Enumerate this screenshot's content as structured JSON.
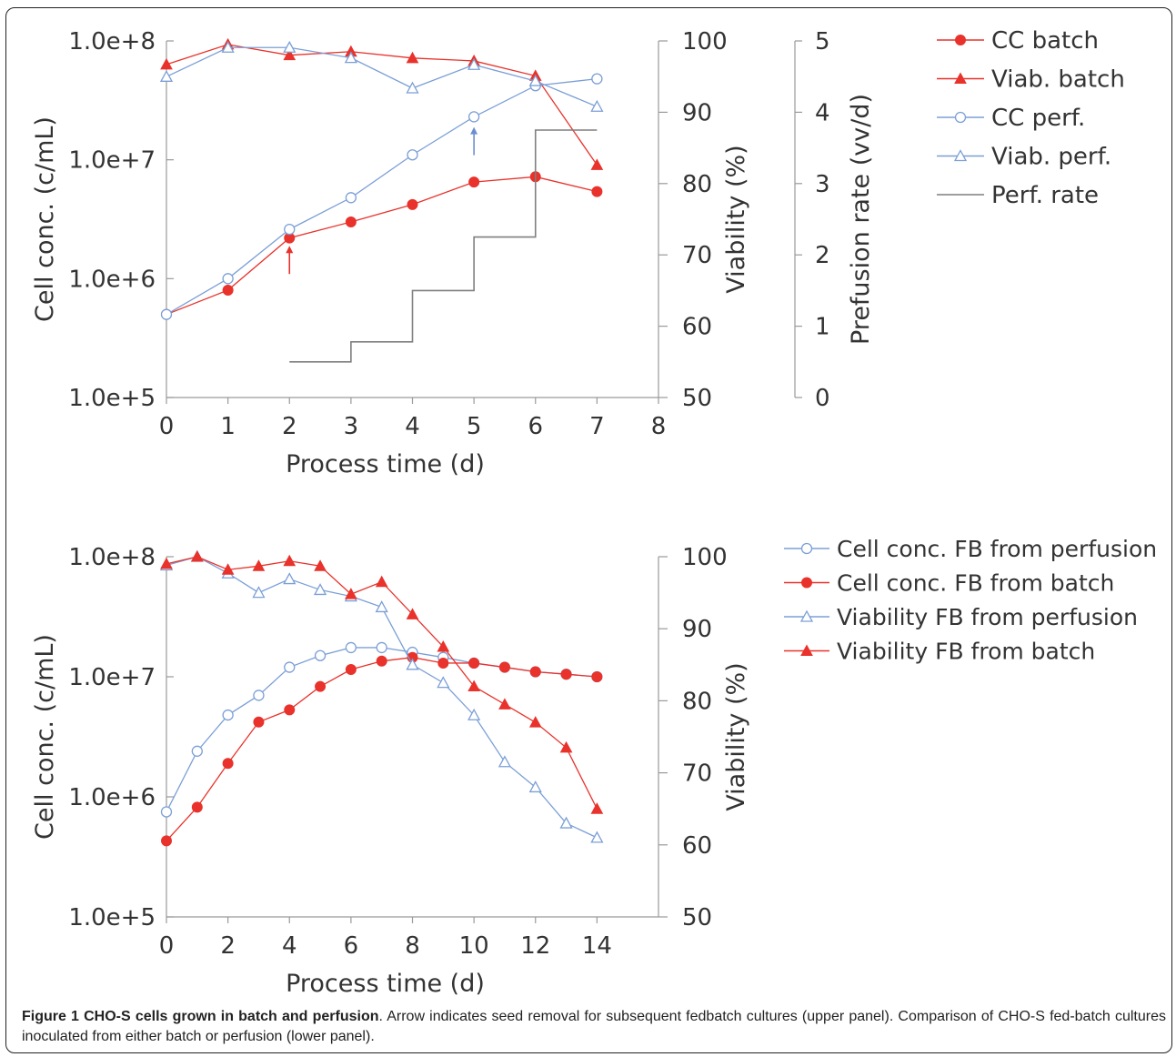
{
  "chart_data": [
    {
      "type": "line",
      "panel": "upper",
      "xlabel": "Process time (d)",
      "ylabel_left": "Cell conc. (c/mL)",
      "ylabel_right1": "Viability (%)",
      "ylabel_right2": "Prefusion rate (vv/d)",
      "x_ticks": [
        "0",
        "1",
        "2",
        "3",
        "4",
        "5",
        "6",
        "7",
        "8"
      ],
      "y_left_ticks": [
        "1.0e+5",
        "1.0e+6",
        "1.0e+7",
        "1.0e+8"
      ],
      "y_right1_ticks": [
        "50",
        "60",
        "70",
        "80",
        "90",
        "100"
      ],
      "y_right2_ticks": [
        "0",
        "1",
        "2",
        "3",
        "4",
        "5"
      ],
      "xlim": [
        0,
        8
      ],
      "ylim_left": [
        100000,
        100000000
      ],
      "y_left_scale": "log",
      "ylim_right1": [
        50,
        100
      ],
      "ylim_right2": [
        0,
        5
      ],
      "legend_position": "right",
      "series": [
        {
          "name": "CC batch",
          "axis": "left",
          "marker": "filled-circle",
          "color": "#e8322b",
          "x": [
            0,
            1,
            2,
            3,
            4,
            5,
            6,
            7
          ],
          "y": [
            500000,
            800000,
            2200000,
            3000000,
            4200000,
            6500000,
            7200000,
            5400000
          ]
        },
        {
          "name": "Viab. batch",
          "axis": "right1",
          "marker": "filled-triangle",
          "color": "#e8322b",
          "x": [
            0,
            1,
            2,
            3,
            4,
            5,
            6,
            7
          ],
          "y": [
            96.7,
            99.5,
            98.0,
            98.5,
            97.6,
            97.2,
            95.1,
            82.6
          ]
        },
        {
          "name": "CC perf.",
          "axis": "left",
          "marker": "open-circle",
          "color": "#7b9fd6",
          "x": [
            0,
            1,
            2,
            3,
            4,
            5,
            6,
            7
          ],
          "y": [
            500000,
            1000000,
            2600000,
            4800000,
            11000000,
            23000000,
            42000000,
            48000000
          ]
        },
        {
          "name": "Viab. perf.",
          "axis": "left",
          "marker": "open-triangle",
          "color": "#7b9fd6",
          "x": [
            0,
            1,
            2,
            3,
            4,
            5,
            6,
            7
          ],
          "y": [
            50000000,
            88000000,
            88000000,
            72000000,
            40000000,
            63000000,
            46000000,
            28000000
          ]
        },
        {
          "name": "Perf. rate",
          "axis": "right2",
          "marker": "none",
          "color": "#7f7f7f",
          "step": true,
          "x": [
            2,
            3,
            3,
            4,
            4,
            5,
            5,
            6,
            6,
            7
          ],
          "y": [
            0.5,
            0.5,
            0.78,
            0.78,
            1.5,
            1.5,
            2.25,
            2.25,
            3.75,
            3.75
          ]
        }
      ],
      "annotations": [
        {
          "type": "arrow",
          "color": "#e8322b",
          "x": 2,
          "y": 1400000
        },
        {
          "type": "arrow",
          "color": "#6b8fd0",
          "x": 5,
          "y": 14000000
        }
      ]
    },
    {
      "type": "line",
      "panel": "lower",
      "xlabel": "Process time (d)",
      "ylabel_left": "Cell conc. (c/mL)",
      "ylabel_right1": "Viability (%)",
      "x_ticks": [
        "0",
        "2",
        "4",
        "6",
        "8",
        "10",
        "12",
        "14"
      ],
      "y_left_ticks": [
        "1.0e+5",
        "1.0e+6",
        "1.0e+7",
        "1.0e+8"
      ],
      "y_right1_ticks": [
        "50",
        "60",
        "70",
        "80",
        "90",
        "100"
      ],
      "xlim": [
        0,
        16
      ],
      "ylim_left": [
        100000,
        100000000
      ],
      "y_left_scale": "log",
      "ylim_right1": [
        50,
        100
      ],
      "legend_position": "right",
      "series": [
        {
          "name": "Cell conc. FB from perfusion",
          "axis": "left",
          "marker": "open-circle",
          "color": "#7b9fd6",
          "x": [
            0,
            1,
            2,
            3,
            4,
            5,
            6,
            7,
            8,
            9,
            10,
            11,
            12,
            13,
            14
          ],
          "y": [
            750000,
            2400000,
            4800000,
            7000000,
            12000000,
            15000000,
            17500000,
            17500000,
            16000000,
            14500000,
            13000000,
            12000000,
            11000000,
            10500000,
            10000000
          ]
        },
        {
          "name": "Cell conc. FB from batch",
          "axis": "left",
          "marker": "filled-circle",
          "color": "#e8322b",
          "x": [
            0,
            1,
            2,
            3,
            4,
            5,
            6,
            7,
            8,
            9,
            10,
            11,
            12,
            13,
            14
          ],
          "y": [
            430000,
            820000,
            1900000,
            4200000,
            5300000,
            8300000,
            11500000,
            13500000,
            14500000,
            13000000,
            13000000,
            12000000,
            11000000,
            10500000,
            10000000
          ]
        },
        {
          "name": "Viability FB from perfusion",
          "axis": "right1",
          "marker": "open-triangle",
          "color": "#7b9fd6",
          "x": [
            0,
            1,
            2,
            3,
            4,
            5,
            6,
            7,
            8,
            9,
            10,
            11,
            12,
            13,
            14
          ],
          "y": [
            98.8,
            100,
            97.7,
            95.0,
            96.9,
            95.4,
            94.5,
            93.0,
            85.0,
            82.5,
            78.0,
            71.5,
            68.0,
            63.0,
            61.0
          ]
        },
        {
          "name": "Viability FB from batch",
          "axis": "right1",
          "marker": "filled-triangle",
          "color": "#e8322b",
          "x": [
            0,
            1,
            2,
            3,
            4,
            5,
            6,
            7,
            8,
            9,
            10,
            11,
            12,
            13,
            14
          ],
          "y": [
            99.0,
            100,
            98.2,
            98.7,
            99.4,
            98.7,
            94.8,
            96.5,
            92.0,
            87.5,
            82.0,
            79.5,
            77.0,
            73.5,
            65.0
          ]
        }
      ]
    }
  ],
  "caption": {
    "bold": "Figure 1 CHO-S cells grown in batch and perfusion",
    "text": ". Arrow indicates seed removal for subsequent fedbatch cultures (upper panel). Comparison of CHO-S fed-batch cultures inoculated from either batch or perfusion (lower panel)."
  }
}
